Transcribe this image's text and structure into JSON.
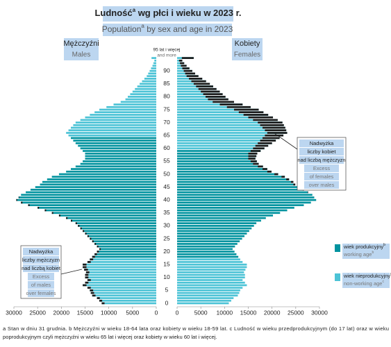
{
  "chart_data": {
    "type": "pyramid",
    "title": "Ludność",
    "title_sup": "a",
    "title_rest": " wg płci i wieku w 2023 r.",
    "subtitle": "Population",
    "subtitle_sup": "a",
    "subtitle_rest": " by sex and age in 2023",
    "categories": [
      "0",
      null,
      null,
      null,
      null,
      "5",
      null,
      null,
      null,
      null,
      "10",
      null,
      null,
      null,
      null,
      "15",
      null,
      null,
      null,
      null,
      "20",
      null,
      null,
      null,
      null,
      "25",
      null,
      null,
      null,
      null,
      "30",
      null,
      null,
      null,
      null,
      "35",
      null,
      null,
      null,
      null,
      "40",
      null,
      null,
      null,
      null,
      "45",
      null,
      null,
      null,
      null,
      "50",
      null,
      null,
      null,
      null,
      "55",
      null,
      null,
      null,
      null,
      "60",
      null,
      null,
      null,
      null,
      "65",
      null,
      null,
      null,
      null,
      "70",
      null,
      null,
      null,
      null,
      "75",
      null,
      null,
      null,
      null,
      "80",
      null,
      null,
      null,
      null,
      "85",
      null,
      null,
      null,
      null,
      "90",
      null,
      null,
      null,
      null,
      "95 lat i więcej"
    ],
    "top_label_en": "and more",
    "series": [
      {
        "name": "Mężczyźni",
        "name_en": "Males",
        "working_from": 18,
        "working_to": 64,
        "values": [
          11500,
          12000,
          12500,
          13500,
          13800,
          14000,
          14500,
          15500,
          15000,
          14500,
          15000,
          15000,
          14800,
          15200,
          15500,
          15500,
          14500,
          14000,
          13500,
          13000,
          12500,
          12000,
          12500,
          13000,
          13500,
          14000,
          14500,
          15000,
          15500,
          16000,
          16500,
          17000,
          18000,
          19000,
          20500,
          22000,
          23500,
          25000,
          27000,
          28500,
          29500,
          29000,
          28500,
          27500,
          26500,
          25500,
          24500,
          24000,
          23000,
          22000,
          20500,
          19000,
          18000,
          17000,
          16000,
          15500,
          15000,
          15000,
          15000,
          15500,
          16000,
          16500,
          17000,
          17500,
          18000,
          18500,
          19000,
          18500,
          18000,
          17500,
          17000,
          16000,
          15000,
          14000,
          13000,
          12000,
          10500,
          9000,
          7500,
          6500,
          6000,
          5500,
          5000,
          4500,
          4000,
          3500,
          3000,
          2500,
          2000,
          1700,
          1400,
          1100,
          800,
          600,
          400,
          1000
        ]
      },
      {
        "name": "Kobiety",
        "name_en": "Females",
        "working_from": 18,
        "working_to": 59,
        "values": [
          10900,
          11400,
          11900,
          12800,
          13100,
          13300,
          13800,
          14700,
          14300,
          13800,
          14300,
          14300,
          14100,
          14400,
          14700,
          14700,
          13800,
          13300,
          12900,
          12500,
          12100,
          11700,
          12200,
          12700,
          13200,
          13700,
          14200,
          14700,
          15200,
          15700,
          16200,
          16700,
          17700,
          18700,
          20200,
          21700,
          23200,
          24700,
          26700,
          28200,
          29300,
          28900,
          28500,
          27600,
          26700,
          25800,
          24900,
          24500,
          23600,
          22700,
          21300,
          19900,
          19000,
          18100,
          17200,
          16800,
          16500,
          16700,
          16900,
          17600,
          18400,
          19200,
          20000,
          20800,
          21600,
          22400,
          23200,
          23000,
          22800,
          22500,
          22200,
          21200,
          20200,
          19200,
          18200,
          17200,
          15500,
          13800,
          12000,
          10800,
          10200,
          9600,
          9000,
          8300,
          7600,
          6900,
          6100,
          5300,
          4500,
          3800,
          3200,
          2600,
          2000,
          1500,
          1100,
          3500
        ]
      }
    ],
    "colors": {
      "working": "#00939f",
      "nonworking": "#4cc3d6",
      "excess": "#1a1a1a"
    },
    "xlim": [
      0,
      30000
    ],
    "xticks": [
      0,
      5000,
      10000,
      15000,
      20000,
      25000,
      30000
    ],
    "legend": [
      {
        "label": "wiek produkcyjny",
        "sup": "b",
        "label_en": "working age",
        "sup_en": "b"
      },
      {
        "label": "wiek nieprodukcyjny",
        "sup": "c",
        "label_en": "non-working age",
        "sup_en": "c"
      }
    ],
    "annotations": [
      {
        "lines": [
          "Nadwyżka",
          "liczby kobiet",
          "nad liczbą mężczyzn"
        ],
        "lines_en": [
          "Excess",
          "of females",
          "over males"
        ]
      },
      {
        "lines": [
          "Nadwyżka",
          "liczby mężczyzn",
          "nad liczbą kobiet"
        ],
        "lines_en": [
          "Excess",
          "of males",
          "over females"
        ]
      }
    ],
    "footnotes": [
      "a Stan w dniu 31 grudnia. b Mężczyźni w wieku 18-64 lata oraz kobiety w wieku 18-59 lat. c Ludność w wieku przedprodukcyjnym (do 17 lat) oraz w wieku",
      "poprodukcyjnym czyli mężczyźni w wieku 65 lat i więcej oraz kobiety w wieku 60 lat i więcej."
    ]
  }
}
